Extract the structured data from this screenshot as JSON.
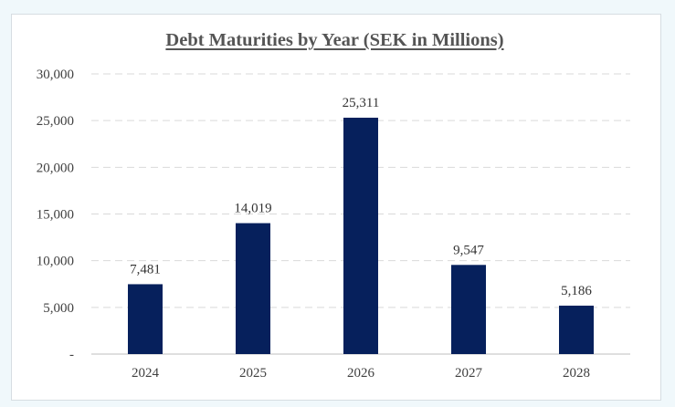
{
  "chart_data": {
    "type": "bar",
    "title": "Debt Maturities by Year (SEK in Millions)",
    "xlabel": "",
    "ylabel": "",
    "categories": [
      "2024",
      "2025",
      "2026",
      "2027",
      "2028"
    ],
    "values": [
      7481,
      14019,
      25311,
      9547,
      5186
    ],
    "value_labels": [
      "7,481",
      "14,019",
      "25,311",
      "9,547",
      "5,186"
    ],
    "ylim": [
      0,
      30000
    ],
    "yticks": [
      0,
      5000,
      10000,
      15000,
      20000,
      25000,
      30000
    ],
    "ytick_labels": [
      "-",
      "5,000",
      "10,000",
      "15,000",
      "20,000",
      "25,000",
      "30,000"
    ],
    "grid": true,
    "legend": "none",
    "colors": {
      "bar": "#06205c",
      "grid": "#d9d9d9",
      "axis": "#bfbfbf"
    }
  }
}
